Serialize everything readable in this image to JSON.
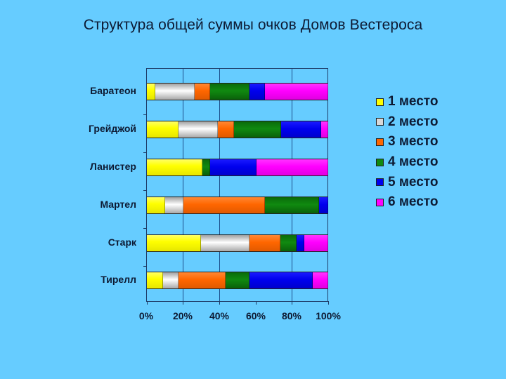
{
  "title": "Структура общей суммы очков Домов Вестероса",
  "colors": {
    "background": "#66CCFF",
    "place1": "#FFFF00",
    "place2": "#D8D8D8",
    "place3": "#FF6600",
    "place4": "#108A10",
    "place5": "#0000EE",
    "place6": "#FF00FF"
  },
  "chart_data": {
    "type": "bar",
    "orientation": "horizontal",
    "stacked": "100%",
    "title": "Структура общей суммы очков Домов Вестероса",
    "xlabel": "",
    "ylabel": "",
    "categories": [
      "Баратеон",
      "Грейджой",
      "Ланистер",
      "Мартел",
      "Старк",
      "Тирелл"
    ],
    "x_ticks": [
      "0%",
      "20%",
      "40%",
      "60%",
      "80%",
      "100%"
    ],
    "xlim": [
      0,
      100
    ],
    "grid": "vertical lines at 20%, 40%, 80%",
    "legend_position": "right",
    "series": [
      {
        "name": "1 место",
        "color": "#FFFF00",
        "values": [
          4.5,
          17.5,
          30.5,
          10,
          30,
          9
        ]
      },
      {
        "name": "2 место",
        "color": "#D8D8D8",
        "values": [
          22,
          21.5,
          0,
          10,
          26.5,
          8.5
        ]
      },
      {
        "name": "3 место",
        "color": "#FF6600",
        "values": [
          8.5,
          9,
          0,
          45,
          17,
          26
        ]
      },
      {
        "name": "4 место",
        "color": "#108A10",
        "values": [
          21.5,
          26,
          4.5,
          30,
          9,
          13
        ]
      },
      {
        "name": "5 место",
        "color": "#0000EE",
        "values": [
          8.5,
          22,
          25.5,
          5,
          4.5,
          35
        ]
      },
      {
        "name": "6 место",
        "color": "#FF00FF",
        "values": [
          35,
          4,
          39.5,
          0,
          13,
          8.5
        ]
      }
    ]
  },
  "legend": [
    {
      "label": "1 место"
    },
    {
      "label": "2 место"
    },
    {
      "label": "3 место"
    },
    {
      "label": "4 место"
    },
    {
      "label": "5 место"
    },
    {
      "label": "6 место"
    }
  ],
  "houses": [
    {
      "label": "Баратеон"
    },
    {
      "label": "Грейджой"
    },
    {
      "label": "Ланистер"
    },
    {
      "label": "Мартел"
    },
    {
      "label": "Старк"
    },
    {
      "label": "Тирелл"
    }
  ],
  "axis": {
    "x_ticks": [
      "0%",
      "20%",
      "40%",
      "60%",
      "80%",
      "100%"
    ]
  }
}
